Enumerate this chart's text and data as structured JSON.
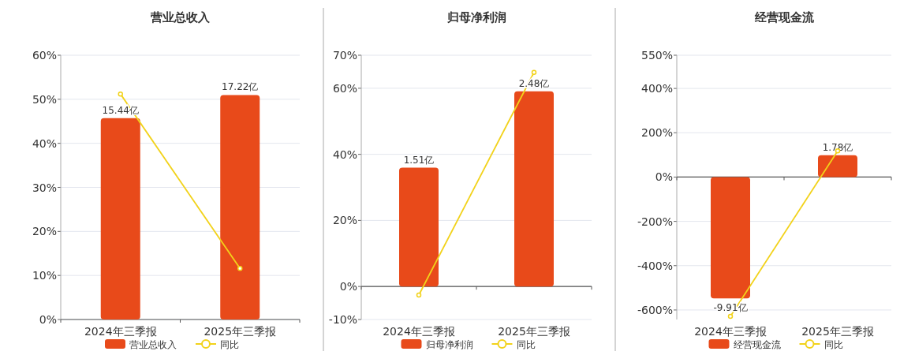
{
  "chart_data": [
    {
      "type": "bar",
      "title": "营业总收入",
      "categories": [
        "2024年三季报",
        "2025年三季报"
      ],
      "series": [
        {
          "name": "营业总收入",
          "type": "bar",
          "axis": "y2",
          "color": "#e84a1a",
          "values": [
            15.44,
            17.22
          ],
          "value_labels": [
            "15.44亿",
            "17.22亿"
          ]
        },
        {
          "name": "同比",
          "type": "line",
          "color": "#f2d21a",
          "values": [
            51.2,
            11.6
          ]
        }
      ],
      "ylim": [
        0,
        60
      ],
      "yticks": [
        {
          "value": 0,
          "label": "0%"
        },
        {
          "value": 10,
          "label": "10%"
        },
        {
          "value": 20,
          "label": "20%"
        },
        {
          "value": 30,
          "label": "30%"
        },
        {
          "value": 40,
          "label": "40%"
        },
        {
          "value": 50,
          "label": "50%"
        },
        {
          "value": 60,
          "label": "60%"
        }
      ],
      "y2lim": [
        0,
        20.27
      ],
      "grid": "y",
      "legend": "bottom",
      "marker": "circle"
    },
    {
      "type": "bar",
      "title": "归母净利润",
      "categories": [
        "2024年三季报",
        "2025年三季报"
      ],
      "series": [
        {
          "name": "归母净利润",
          "type": "bar",
          "axis": "y2",
          "color": "#e84a1a",
          "values": [
            1.51,
            2.48
          ],
          "value_labels": [
            "1.51亿",
            "2.48亿"
          ]
        },
        {
          "name": "同比",
          "type": "line",
          "color": "#f2d21a",
          "values": [
            -2.6,
            64.8
          ]
        }
      ],
      "ylim": [
        -10,
        70
      ],
      "yticks": [
        {
          "value": -10,
          "label": "-10%"
        },
        {
          "value": 0,
          "label": "0%"
        },
        {
          "value": 20,
          "label": "20%"
        },
        {
          "value": 40,
          "label": "40%"
        },
        {
          "value": 60,
          "label": "60%"
        },
        {
          "value": 70,
          "label": "70%"
        }
      ],
      "y2lim": [
        -0.42,
        2.94
      ],
      "grid": "y",
      "legend": "bottom",
      "marker": "circle"
    },
    {
      "type": "bar",
      "title": "经营现金流",
      "categories": [
        "2024年三季报",
        "2025年三季报"
      ],
      "series": [
        {
          "name": "经营现金流",
          "type": "bar",
          "axis": "y2",
          "color": "#e84a1a",
          "values": [
            -9.91,
            1.78
          ],
          "value_labels": [
            "-9.91亿",
            "1.78亿"
          ]
        },
        {
          "name": "同比",
          "type": "line",
          "color": "#f2d21a",
          "values": [
            -629,
            118
          ]
        }
      ],
      "ylim": [
        -643,
        550
      ],
      "yticks": [
        {
          "value": -600,
          "label": "-600%"
        },
        {
          "value": -400,
          "label": "-400%"
        },
        {
          "value": -200,
          "label": "-200%"
        },
        {
          "value": 0,
          "label": "0%"
        },
        {
          "value": 200,
          "label": "200%"
        },
        {
          "value": 400,
          "label": "400%"
        },
        {
          "value": 550,
          "label": "550%"
        }
      ],
      "y2lim": [
        -11.64,
        9.96
      ],
      "grid": "y",
      "legend": "bottom",
      "marker": "circle"
    }
  ]
}
